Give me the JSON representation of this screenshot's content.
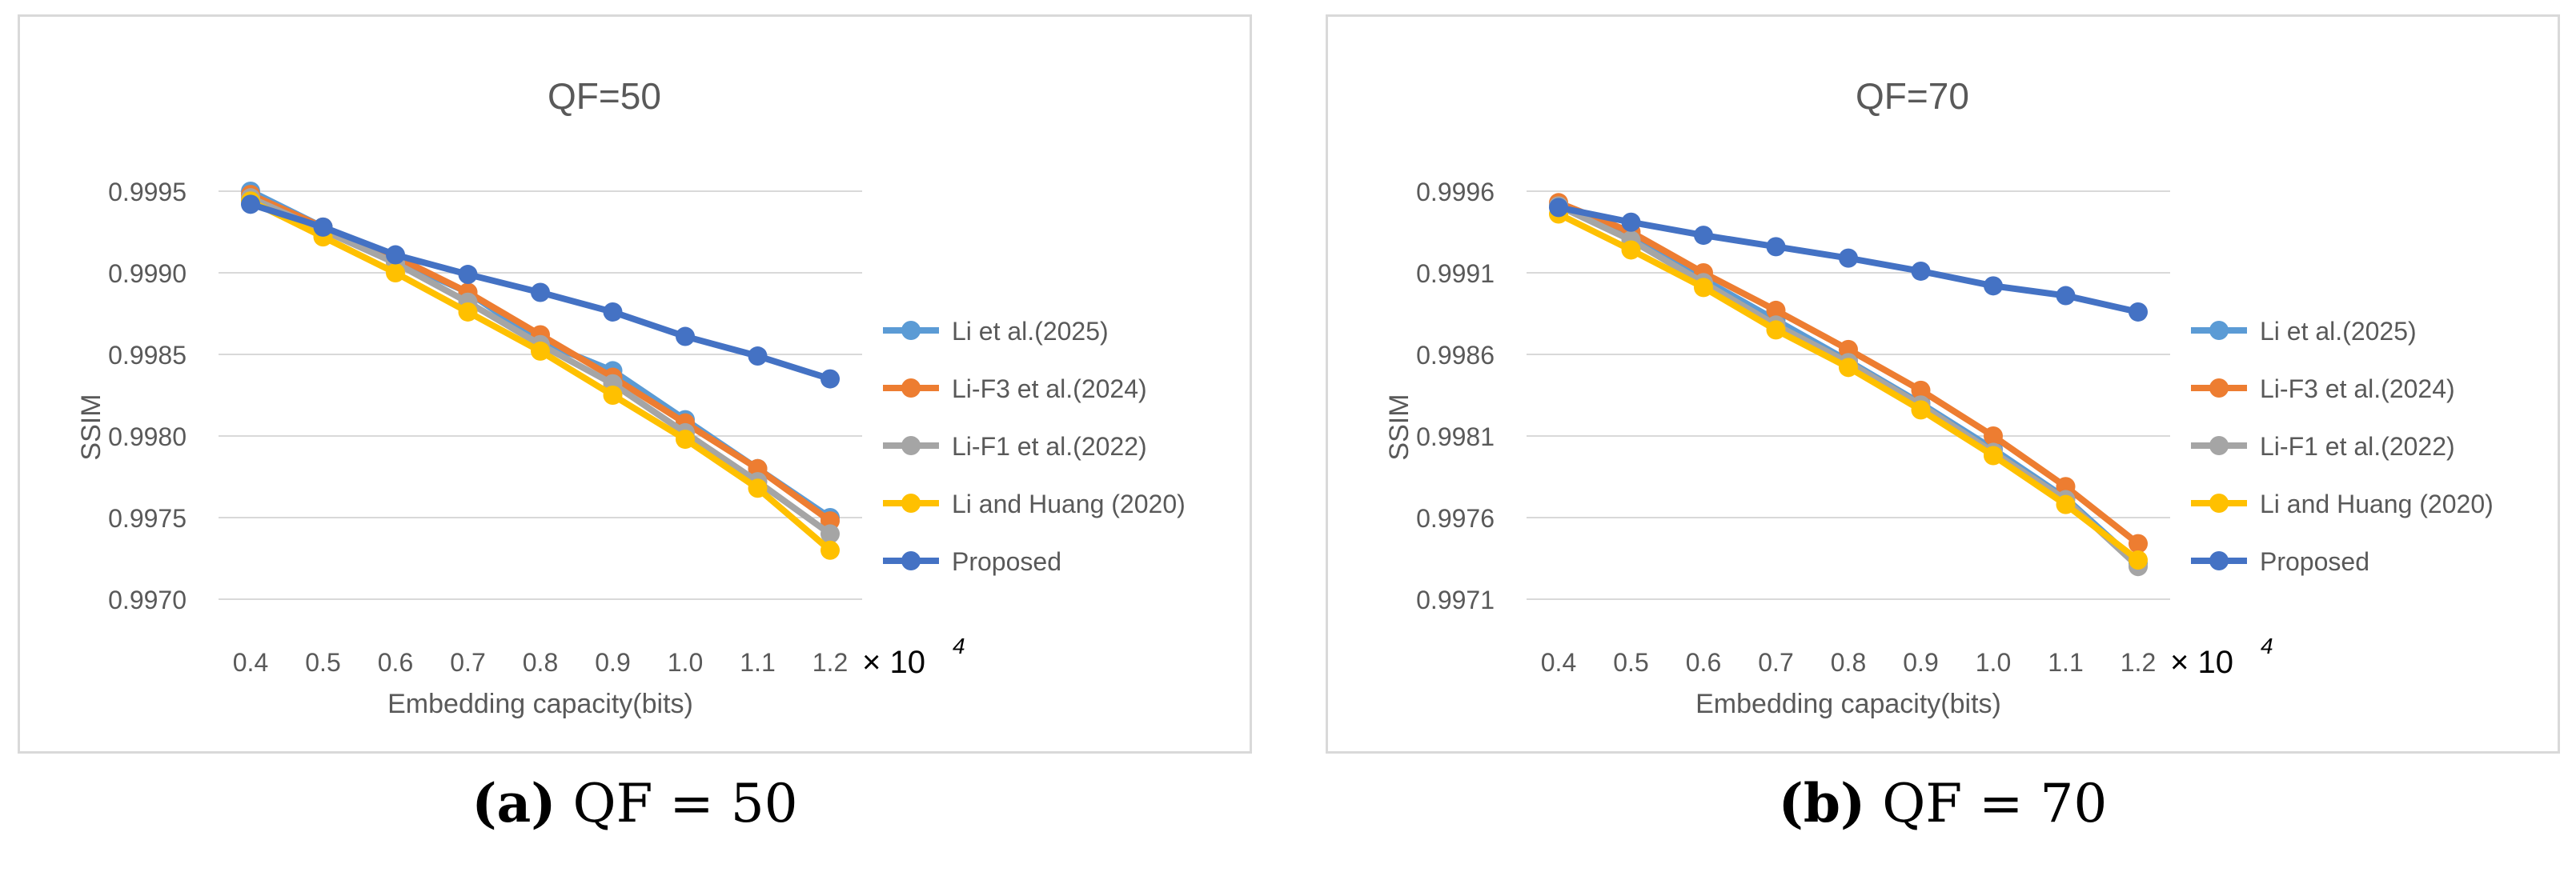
{
  "chart_data": [
    {
      "type": "line",
      "title": "QF=50",
      "xlabel": "Embedding capacity(bits)",
      "ylabel": "SSIM",
      "x_multiplier": "× 10",
      "x_multiplier_exp": "4",
      "x": [
        0.4,
        0.5,
        0.6,
        0.7,
        0.8,
        0.9,
        1.0,
        1.1,
        1.2
      ],
      "x_tick_labels": [
        "0.4",
        "0.5",
        "0.6",
        "0.7",
        "0.8",
        "0.9",
        "1.0",
        "1.1",
        "1.2"
      ],
      "yticks": [
        0.997,
        0.9975,
        0.998,
        0.9985,
        0.999,
        0.9995
      ],
      "y_tick_labels": [
        "0.9970",
        "0.9975",
        "0.9980",
        "0.9985",
        "0.9990",
        "0.9995"
      ],
      "ylim": [
        0.997,
        0.9995
      ],
      "grid": true,
      "legend_position": "right",
      "series": [
        {
          "name": "Li et al.(2025)",
          "color": "#5B9BD5",
          "values": [
            0.9995,
            0.99928,
            0.99908,
            0.99888,
            0.99858,
            0.9984,
            0.9981,
            0.9978,
            0.9975
          ]
        },
        {
          "name": "Li-F3 et al.(2024)",
          "color": "#ED7D31",
          "values": [
            0.99948,
            0.99928,
            0.9991,
            0.99888,
            0.99862,
            0.99836,
            0.99808,
            0.9978,
            0.99748
          ]
        },
        {
          "name": "Li-F1 et al.(2022)",
          "color": "#A5A5A5",
          "values": [
            0.99946,
            0.99926,
            0.99906,
            0.99882,
            0.99856,
            0.99832,
            0.99802,
            0.99772,
            0.9974
          ]
        },
        {
          "name": "Li and Huang (2020)",
          "color": "#FFC000",
          "values": [
            0.99944,
            0.99922,
            0.999,
            0.99876,
            0.99852,
            0.99825,
            0.99798,
            0.99768,
            0.9973
          ]
        },
        {
          "name": "Proposed",
          "color": "#4472C4",
          "values": [
            0.99942,
            0.99928,
            0.99911,
            0.99899,
            0.99888,
            0.99876,
            0.99861,
            0.99849,
            0.99835
          ]
        }
      ]
    },
    {
      "type": "line",
      "title": "QF=70",
      "xlabel": "Embedding capacity(bits)",
      "ylabel": "SSIM",
      "x_multiplier": "× 10",
      "x_multiplier_exp": "4",
      "x": [
        0.4,
        0.5,
        0.6,
        0.7,
        0.8,
        0.9,
        1.0,
        1.1,
        1.2
      ],
      "x_tick_labels": [
        "0.4",
        "0.5",
        "0.6",
        "0.7",
        "0.8",
        "0.9",
        "1.0",
        "1.1",
        "1.2"
      ],
      "yticks": [
        0.9971,
        0.9976,
        0.9981,
        0.9986,
        0.9991,
        0.9996
      ],
      "y_tick_labels": [
        "0.9971",
        "0.9976",
        "0.9981",
        "0.9986",
        "0.9991",
        "0.9996"
      ],
      "ylim": [
        0.9971,
        0.9996
      ],
      "grid": true,
      "legend_position": "right",
      "series": [
        {
          "name": "Li et al.(2025)",
          "color": "#5B9BD5",
          "values": [
            0.99952,
            0.99932,
            0.99906,
            0.99881,
            0.99856,
            0.9983,
            0.99802,
            0.99772,
            0.99732
          ]
        },
        {
          "name": "Li-F3 et al.(2024)",
          "color": "#ED7D31",
          "values": [
            0.99953,
            0.99935,
            0.9991,
            0.99887,
            0.99863,
            0.99838,
            0.9981,
            0.99779,
            0.99744
          ]
        },
        {
          "name": "Li-F1 et al.(2022)",
          "color": "#A5A5A5",
          "values": [
            0.99951,
            0.9993,
            0.99904,
            0.99878,
            0.99855,
            0.99829,
            0.998,
            0.99771,
            0.9973
          ]
        },
        {
          "name": "Li and Huang (2020)",
          "color": "#FFC000",
          "values": [
            0.99946,
            0.99924,
            0.99901,
            0.99875,
            0.99852,
            0.99826,
            0.99798,
            0.99768,
            0.99734
          ]
        },
        {
          "name": "Proposed",
          "color": "#4472C4",
          "values": [
            0.9995,
            0.99941,
            0.99933,
            0.99926,
            0.99919,
            0.99911,
            0.99902,
            0.99896,
            0.99886
          ]
        }
      ]
    }
  ],
  "captions": [
    {
      "label": "(a)",
      "text": " QF = 50"
    },
    {
      "label": "(b)",
      "text": " QF = 70"
    }
  ]
}
